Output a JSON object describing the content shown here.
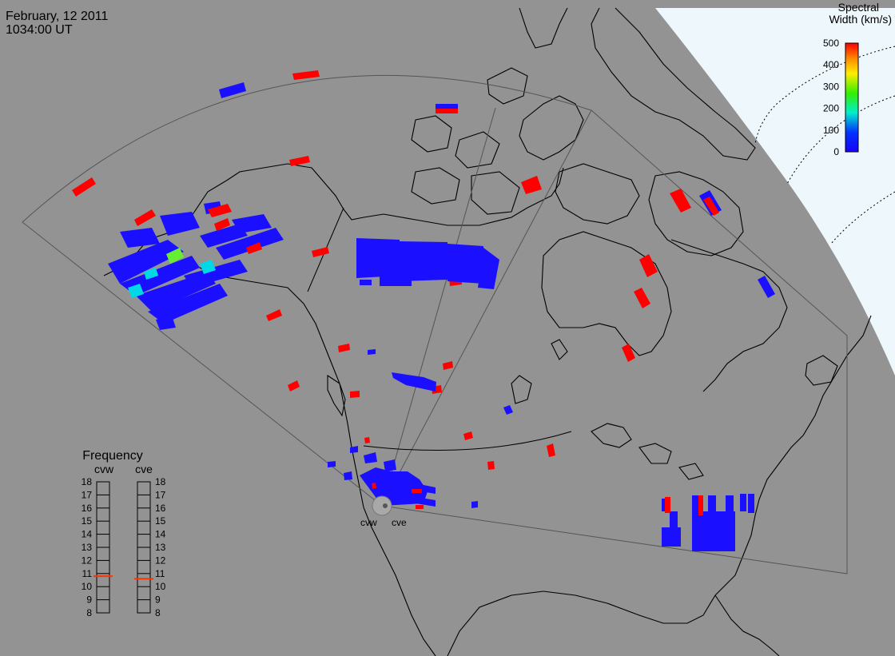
{
  "header": {
    "date": "February, 12 2011",
    "time": "1034:00 UT"
  },
  "colorbar": {
    "title_line1": "Spectral",
    "title_line2": "Width (km/s)",
    "ticks": [
      "500",
      "400",
      "300",
      "200",
      "100",
      "0"
    ],
    "colors": [
      "#ff0000",
      "#ff8800",
      "#ffee00",
      "#33ee00",
      "#00eecc",
      "#0033ff",
      "#1a00ff"
    ]
  },
  "radars": {
    "west_label": "cvw",
    "east_label": "cve"
  },
  "frequency": {
    "title": "Frequency",
    "west_label": "cvw",
    "east_label": "cve",
    "ticks": [
      "18",
      "17",
      "16",
      "15",
      "14",
      "13",
      "12",
      "11",
      "10",
      "9",
      "8"
    ],
    "west_mhz": 10.8,
    "east_mhz": 10.6,
    "marker_color": "#ff3300"
  },
  "colors": {
    "ocean": "#939393",
    "polar_cap": "#eef7fc",
    "echo_blue": "#1a10ff",
    "echo_red": "#ff0000",
    "echo_cyan": "#00d8e8",
    "echo_green": "#66ee33"
  }
}
